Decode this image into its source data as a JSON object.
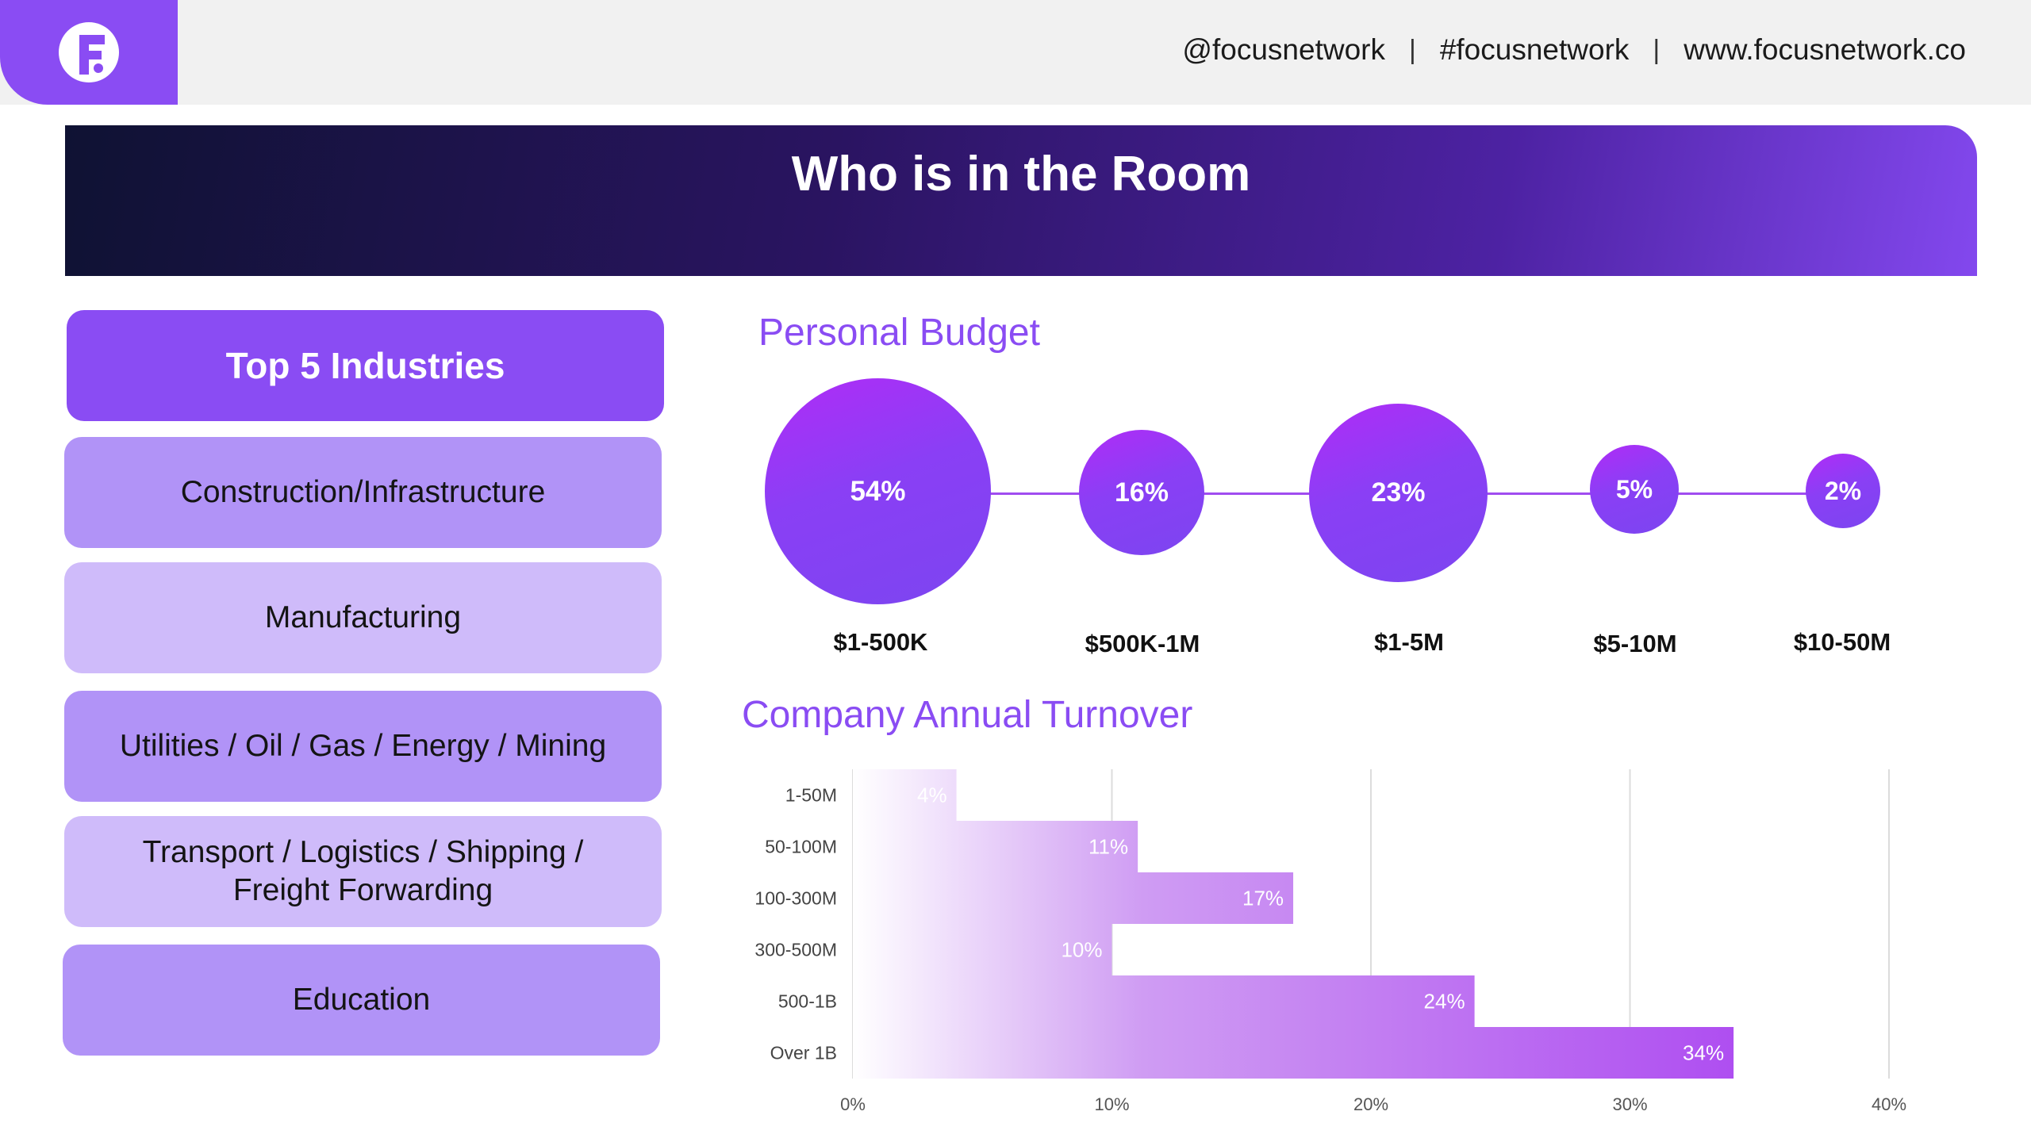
{
  "header": {
    "logo_icon": "focus-network-logo",
    "social": [
      "@focusnetwork",
      "#focusnetwork",
      "www.focusnetwork.co"
    ],
    "separator": "|"
  },
  "banner": {
    "title": "Who is in the Room"
  },
  "industries": {
    "title": "Top 5 Industries",
    "items": [
      "Construction/Infrastructure",
      "Manufacturing",
      "Utilities / Oil / Gas / Energy / Mining",
      "Transport / Logistics / Shipping /\nFreight Forwarding",
      "Education"
    ]
  },
  "budget": {
    "title": "Personal Budget",
    "items": [
      {
        "value": "54%",
        "label": "$1-500K"
      },
      {
        "value": "16%",
        "label": "$500K-1M"
      },
      {
        "value": "23%",
        "label": "$1-5M"
      },
      {
        "value": "5%",
        "label": "$5-10M"
      },
      {
        "value": "2%",
        "label": "$10-50M"
      }
    ]
  },
  "turnover": {
    "title": "Company Annual Turnover"
  },
  "chart_data": {
    "type": "bar",
    "orientation": "horizontal",
    "title": "Company Annual Turnover",
    "categories": [
      "1-50M",
      "50-100M",
      "100-300M",
      "300-500M",
      "500-1B",
      "Over 1B"
    ],
    "values": [
      4,
      11,
      17,
      10,
      24,
      34
    ],
    "value_labels": [
      "4%",
      "11%",
      "17%",
      "10%",
      "24%",
      "34%"
    ],
    "xlim": [
      0,
      40
    ],
    "xticks": [
      "0%",
      "10%",
      "20%",
      "30%",
      "40%"
    ],
    "grid": true,
    "legend": "none",
    "bar_gradient": [
      "#ffffff",
      "#a63af0"
    ]
  }
}
